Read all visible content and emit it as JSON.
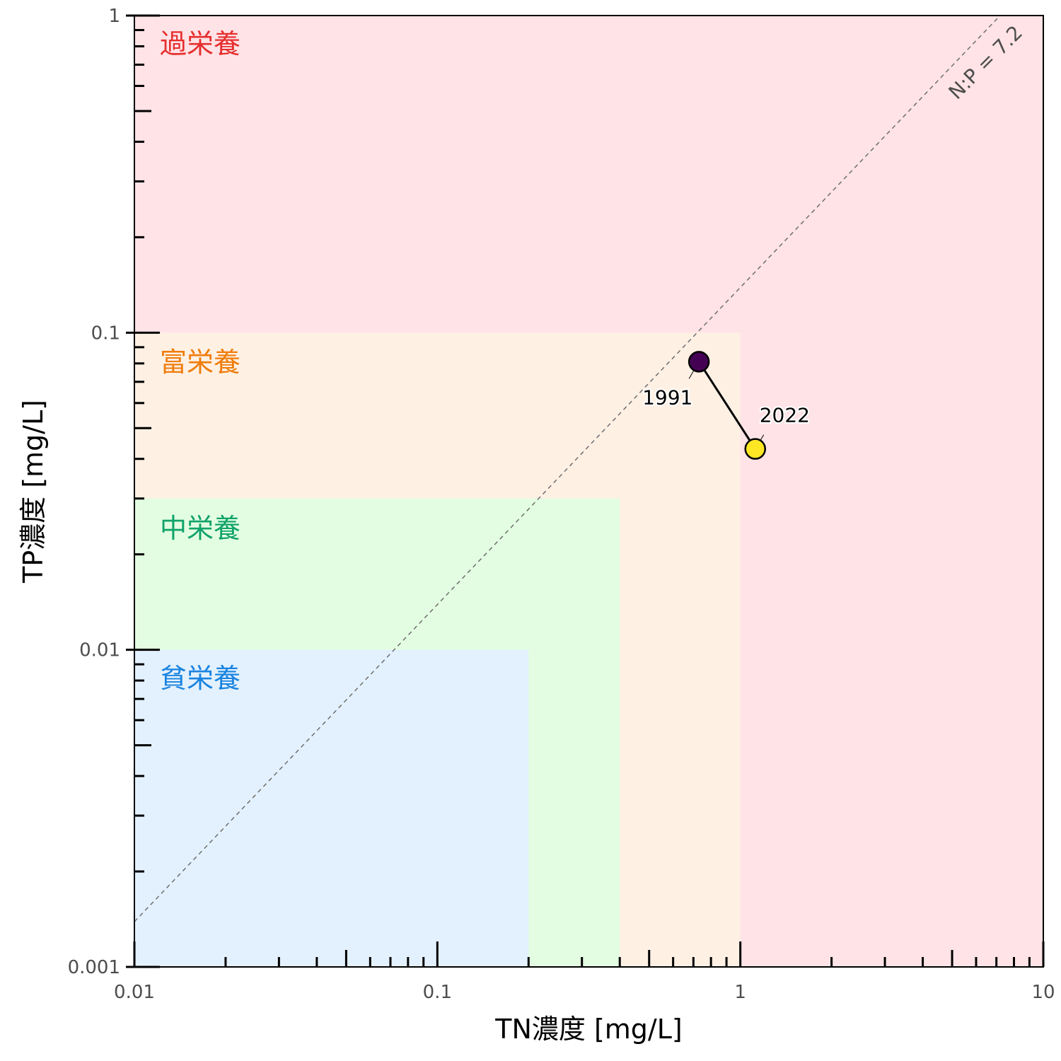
{
  "chart_data": {
    "type": "scatter",
    "xlabel": "TN濃度 [mg/L]",
    "ylabel": "TP濃度 [mg/L]",
    "xscale": "log",
    "yscale": "log",
    "xlim": [
      0.01,
      10
    ],
    "ylim": [
      0.001,
      1
    ],
    "x_tick_labels": [
      "0.01",
      "0.1",
      "1",
      "10"
    ],
    "y_tick_labels": [
      "0.001",
      "0.01",
      "0.1",
      "1"
    ],
    "regions": [
      {
        "name": "過栄養",
        "color": "#e62e2e",
        "fill": "#ffe3e6",
        "tn_max": 10,
        "tp_max": 1
      },
      {
        "name": "富栄養",
        "color": "#ef7d0b",
        "fill": "#fff0e4",
        "tn_max": 1,
        "tp_max": 0.1
      },
      {
        "name": "中栄養",
        "color": "#11a36a",
        "fill": "#e3fde2",
        "tn_max": 0.4,
        "tp_max": 0.03
      },
      {
        "name": "貧栄養",
        "color": "#1a84e0",
        "fill": "#e3f1fe",
        "tn_max": 0.2,
        "tp_max": 0.01
      }
    ],
    "ratio_line": {
      "label": "N:P = 7.2",
      "ratio": 7.2
    },
    "points": [
      {
        "label": "1991",
        "x": 0.73,
        "y": 0.081,
        "color": "#440154"
      },
      {
        "label": "2022",
        "x": 1.12,
        "y": 0.043,
        "color": "#fde725"
      }
    ],
    "grid": false
  }
}
